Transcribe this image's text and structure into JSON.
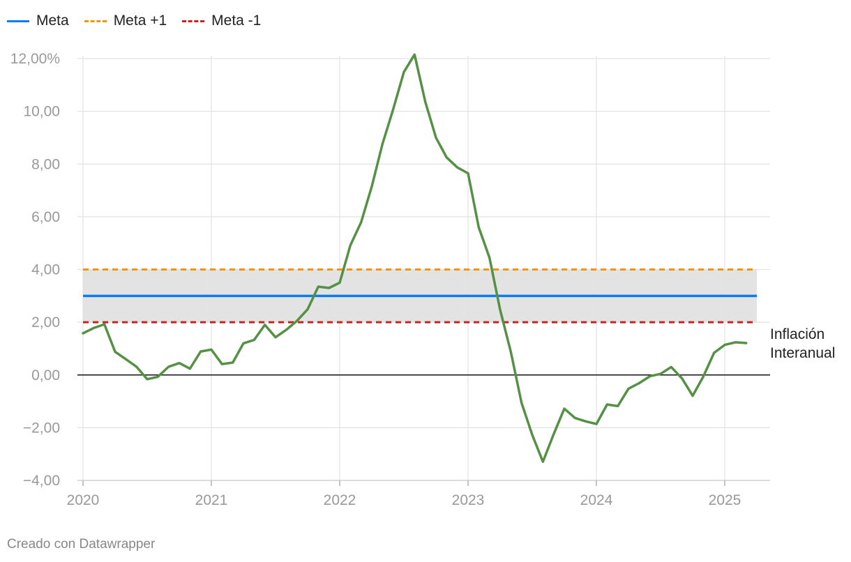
{
  "legend": [
    {
      "name": "Meta",
      "color": "#0a7cf0",
      "style": "solid"
    },
    {
      "name": "Meta +1",
      "color": "#f2950a",
      "style": "dashed"
    },
    {
      "name": "Meta -1",
      "color": "#c8241d",
      "style": "dashed"
    }
  ],
  "footer": "Creado con Datawrapper",
  "chart_data": {
    "type": "line",
    "title": "",
    "xlabel": "",
    "ylabel": "",
    "ylim": [
      -4,
      12
    ],
    "xlim": [
      2020.0,
      2025.25
    ],
    "grid": true,
    "legend_position": "top-left",
    "y_ticks": [
      {
        "value": 12,
        "label": "12,00%"
      },
      {
        "value": 10,
        "label": "10,00"
      },
      {
        "value": 8,
        "label": "8,00"
      },
      {
        "value": 6,
        "label": "6,00"
      },
      {
        "value": 4,
        "label": "4,00"
      },
      {
        "value": 2,
        "label": "2,00"
      },
      {
        "value": 0,
        "label": "0,00"
      },
      {
        "value": -2,
        "label": "−2,00"
      },
      {
        "value": -4,
        "label": "−4,00"
      }
    ],
    "x_ticks": [
      {
        "value": 2020,
        "label": "2020"
      },
      {
        "value": 2021,
        "label": "2021"
      },
      {
        "value": 2022,
        "label": "2022"
      },
      {
        "value": 2023,
        "label": "2023"
      },
      {
        "value": 2024,
        "label": "2024"
      },
      {
        "value": 2025,
        "label": "2025"
      }
    ],
    "band": {
      "from": 2,
      "to": 4,
      "color": "#e3e3e3"
    },
    "reference_lines": [
      {
        "name": "Meta",
        "value": 3,
        "color": "#0a7cf0",
        "style": "solid"
      },
      {
        "name": "Meta +1",
        "value": 4,
        "color": "#f2950a",
        "style": "dashed"
      },
      {
        "name": "Meta -1",
        "value": 2,
        "color": "#c8241d",
        "style": "dashed"
      }
    ],
    "series": [
      {
        "name": "Inflación Interanual",
        "name_lines": [
          "Inflación",
          "Interanual"
        ],
        "color": "#559144",
        "x": [
          2020.0,
          2020.083,
          2020.167,
          2020.25,
          2020.333,
          2020.417,
          2020.5,
          2020.583,
          2020.667,
          2020.75,
          2020.833,
          2020.917,
          2021.0,
          2021.083,
          2021.167,
          2021.25,
          2021.333,
          2021.417,
          2021.5,
          2021.583,
          2021.667,
          2021.75,
          2021.833,
          2021.917,
          2022.0,
          2022.083,
          2022.167,
          2022.25,
          2022.333,
          2022.417,
          2022.5,
          2022.583,
          2022.667,
          2022.75,
          2022.833,
          2022.917,
          2023.0,
          2023.083,
          2023.167,
          2023.25,
          2023.333,
          2023.417,
          2023.5,
          2023.583,
          2023.667,
          2023.75,
          2023.833,
          2023.917,
          2024.0,
          2024.083,
          2024.167,
          2024.25,
          2024.333,
          2024.417,
          2024.5,
          2024.583,
          2024.667,
          2024.75,
          2024.833,
          2024.917,
          2025.0,
          2025.083,
          2025.167
        ],
        "values": [
          1.58,
          1.78,
          1.92,
          0.88,
          0.6,
          0.31,
          -0.16,
          -0.07,
          0.31,
          0.45,
          0.24,
          0.89,
          0.96,
          0.41,
          0.47,
          1.2,
          1.33,
          1.9,
          1.43,
          1.71,
          2.05,
          2.49,
          3.35,
          3.3,
          3.5,
          4.92,
          5.79,
          7.15,
          8.76,
          10.08,
          11.49,
          12.15,
          10.36,
          9.0,
          8.25,
          7.87,
          7.65,
          5.6,
          4.45,
          2.47,
          0.88,
          -1.06,
          -2.27,
          -3.29,
          -2.25,
          -1.28,
          -1.63,
          -1.76,
          -1.86,
          -1.12,
          -1.18,
          -0.52,
          -0.31,
          -0.05,
          0.04,
          0.3,
          -0.13,
          -0.79,
          -0.06,
          0.84,
          1.14,
          1.24,
          1.21
        ]
      }
    ]
  }
}
